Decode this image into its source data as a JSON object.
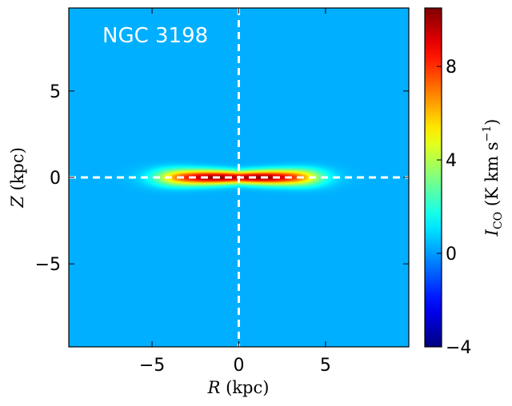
{
  "chart_data": {
    "type": "heatmap",
    "title": "NGC 3198",
    "xlabel": "R (kpc)",
    "xlabel_var": "R",
    "xlabel_unit": " (kpc)",
    "ylabel": "Z (kpc)",
    "ylabel_var": "Z",
    "ylabel_unit": " (kpc)",
    "xlim": [
      -9.8,
      9.8
    ],
    "ylim": [
      -9.8,
      9.8
    ],
    "xticks": [
      -5,
      0,
      5
    ],
    "xtick_labels": [
      "−5",
      "0",
      "5"
    ],
    "yticks": [
      -5,
      0,
      5
    ],
    "ytick_labels": [
      "−5",
      "0",
      "5"
    ],
    "colorbar": {
      "label": "I_CO (K km s^-1)",
      "label_var": "I",
      "label_sub": "CO",
      "label_unit": " (K km s",
      "label_sup": "−1",
      "label_close": ")",
      "vmin": -4,
      "vmax": 10.5,
      "ticks": [
        -4,
        0,
        4,
        8
      ],
      "tick_labels": [
        "−4",
        "0",
        "4",
        "8"
      ],
      "colormap": "jet"
    },
    "field": {
      "description": "Edge-on CO emission disk centred at Z=0, elongated along R",
      "peak_value": 10.3,
      "peak_positions_R": [
        -1.3,
        1.3
      ],
      "peak_Z": 0,
      "radial_extent_R": [
        -5.5,
        5.5
      ],
      "vertical_thickness_Z": 0.35,
      "background_value": 0.3
    },
    "reference_lines": [
      {
        "orientation": "vertical",
        "value": 0,
        "style": "dashed",
        "color": "#ffffff"
      },
      {
        "orientation": "horizontal",
        "value": 0,
        "style": "dashed",
        "color": "#ffffff"
      }
    ],
    "grid": false
  }
}
